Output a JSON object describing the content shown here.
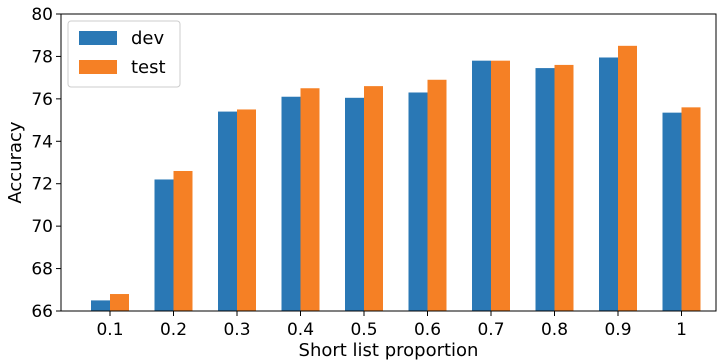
{
  "chart_data": {
    "type": "bar",
    "title": "",
    "xlabel": "Short list proportion",
    "ylabel": "Accuracy",
    "ylim": [
      66,
      80
    ],
    "yticks": [
      "66",
      "68",
      "70",
      "72",
      "74",
      "76",
      "78",
      "80"
    ],
    "categories": [
      "0.1",
      "0.2",
      "0.3",
      "0.4",
      "0.5",
      "0.6",
      "0.7",
      "0.8",
      "0.9",
      "1"
    ],
    "series": [
      {
        "name": "dev",
        "color": "#2a78b5",
        "values": [
          66.5,
          72.2,
          75.4,
          76.1,
          76.05,
          76.3,
          77.8,
          77.45,
          77.95,
          75.35
        ]
      },
      {
        "name": "test",
        "color": "#f58025",
        "values": [
          66.8,
          72.6,
          75.5,
          76.5,
          76.6,
          76.9,
          77.8,
          77.6,
          78.5,
          75.6
        ]
      }
    ],
    "legend": "top-left",
    "grid": false
  }
}
